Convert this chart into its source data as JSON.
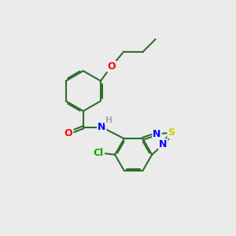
{
  "bg_color": "#ebebeb",
  "bond_color": "#2d6e2d",
  "atom_colors": {
    "O": "#ff0000",
    "N": "#0000ff",
    "S": "#cccc00",
    "Cl": "#00aa00",
    "H": "#aaaaaa",
    "C": "#2d6e2d"
  },
  "font_size": 9,
  "figsize": [
    3.0,
    3.0
  ],
  "dpi": 100
}
